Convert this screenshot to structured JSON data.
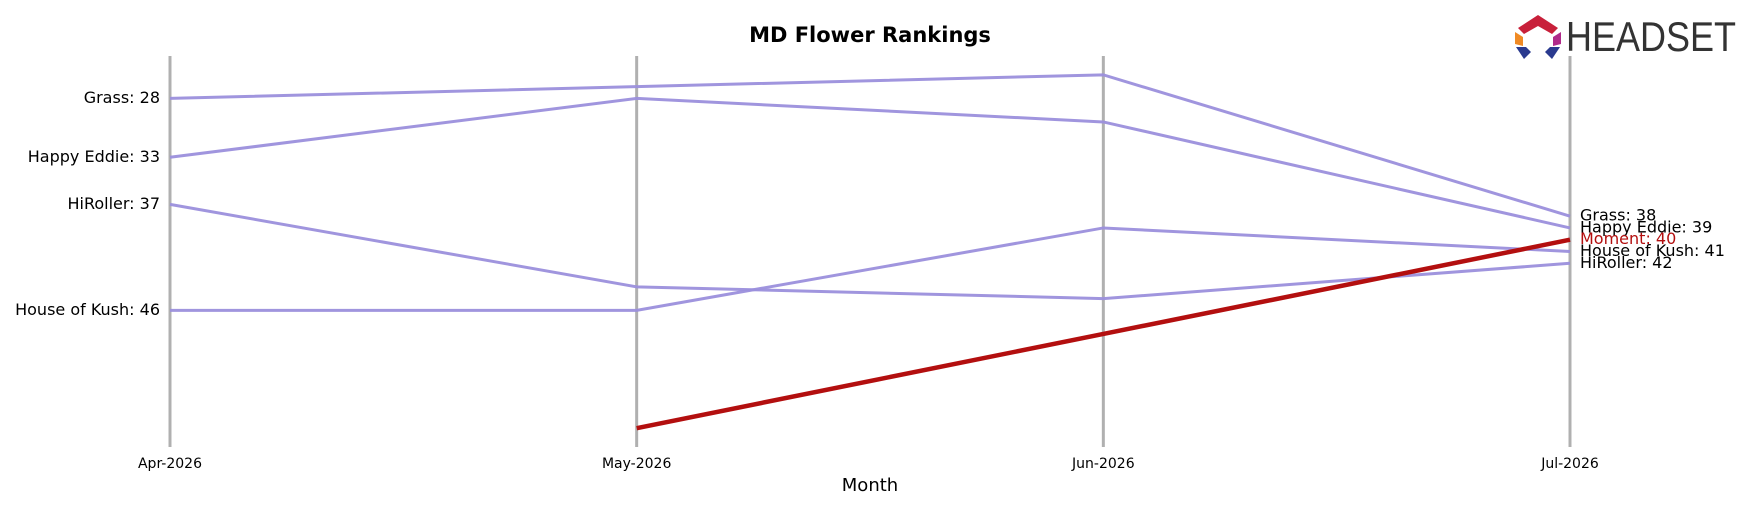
{
  "logo": "HEADSET",
  "chart_data": {
    "type": "line",
    "title": "MD Flower Rankings",
    "x_label": "Month",
    "categories": [
      "Apr-2026",
      "May-2026",
      "Jun-2026",
      "Jul-2026"
    ],
    "ylim": [
      57.6,
      24.4
    ],
    "inverted": true,
    "series": [
      {
        "name": "Grass",
        "color": "#9b8fdc",
        "values": [
          28,
          27,
          26,
          38
        ],
        "value_labels": [
          "Grass: 28",
          null,
          null,
          "Grass: 38"
        ]
      },
      {
        "name": "Happy Eddie",
        "color": "#9b8fdc",
        "values": [
          33,
          28,
          30,
          39
        ],
        "value_labels": [
          "Happy Eddie: 33",
          null,
          null,
          "Happy Eddie: 39"
        ]
      },
      {
        "name": "HiRoller",
        "color": "#9b8fdc",
        "values": [
          37,
          44,
          45,
          42
        ],
        "value_labels": [
          "HiRoller: 37",
          null,
          null,
          "HiRoller: 42"
        ]
      },
      {
        "name": "House of Kush",
        "color": "#9b8fdc",
        "values": [
          46,
          46,
          39,
          41
        ],
        "value_labels": [
          "House of Kush: 46",
          null,
          null,
          "House of Kush: 41"
        ]
      },
      {
        "name": "Moment",
        "color": "#b30f0f",
        "values": [
          null,
          56,
          48,
          40
        ],
        "value_labels": [
          null,
          null,
          null,
          "Moment: 40"
        ]
      }
    ]
  }
}
